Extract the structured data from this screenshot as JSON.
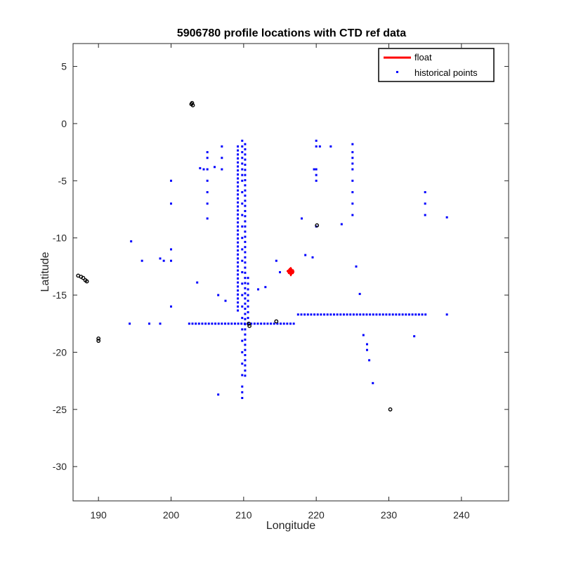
{
  "chart_data": {
    "type": "scatter",
    "title": "5906780 profile locations with CTD ref data",
    "xlabel": "Longitude",
    "ylabel": "Latitude",
    "xlim": [
      186.5,
      246.5
    ],
    "ylim": [
      -33,
      7
    ],
    "xticks": [
      "190",
      "200",
      "210",
      "220",
      "230",
      "240"
    ],
    "yticks": [
      "5",
      "0",
      "-5",
      "-10",
      "-15",
      "-20",
      "-25",
      "-30"
    ],
    "x_tick_values": [
      190,
      200,
      210,
      220,
      230,
      240
    ],
    "y_tick_values": [
      5,
      0,
      -5,
      -10,
      -15,
      -20,
      -25,
      -30
    ],
    "grid": false,
    "legend_position": "top-right",
    "legend": [
      {
        "label": "float",
        "marker": "line",
        "color": "#ff0000"
      },
      {
        "label": "historical points",
        "marker": "dot",
        "color": "#0000ff"
      }
    ],
    "series": [
      {
        "name": "float",
        "color": "#ff0000",
        "x": [
          216.3,
          216.4,
          216.5,
          216.6,
          216.5,
          216.4,
          216.6,
          216.5
        ],
        "y": [
          -12.9,
          -13.0,
          -12.8,
          -13.0,
          -13.1,
          -12.85,
          -12.9,
          -13.0
        ]
      },
      {
        "name": "historical points",
        "color": "#0000ff",
        "points": [
          [
            209.8,
            -2.0
          ],
          [
            209.8,
            -1.5
          ],
          [
            209.8,
            -2.5
          ],
          [
            209.8,
            -3.0
          ],
          [
            209.8,
            -3.5
          ],
          [
            209.8,
            -4.0
          ],
          [
            209.8,
            -4.5
          ],
          [
            209.8,
            -5.0
          ],
          [
            209.8,
            -6.0
          ],
          [
            209.8,
            -7.0
          ],
          [
            209.8,
            -8.0
          ],
          [
            209.8,
            -9.0
          ],
          [
            209.8,
            -10.0
          ],
          [
            209.8,
            -11.0
          ],
          [
            209.8,
            -12.0
          ],
          [
            209.8,
            -13.0
          ],
          [
            209.8,
            -14.0
          ],
          [
            209.8,
            -15.0
          ],
          [
            209.8,
            -16.0
          ],
          [
            209.8,
            -17.0
          ],
          [
            209.8,
            -18.0
          ],
          [
            209.8,
            -19.0
          ],
          [
            209.8,
            -20.0
          ],
          [
            209.8,
            -21.0
          ],
          [
            209.8,
            -22.0
          ],
          [
            209.8,
            -23.0
          ],
          [
            209.8,
            -23.5
          ],
          [
            209.8,
            -24.0
          ],
          [
            205.0,
            -2.5
          ],
          [
            205.0,
            -3.0
          ],
          [
            205.0,
            -4.0
          ],
          [
            205.0,
            -5.0
          ],
          [
            205.0,
            -6.0
          ],
          [
            205.0,
            -7.0
          ],
          [
            205.0,
            -8.3
          ],
          [
            200.0,
            -5.0
          ],
          [
            200.0,
            -7.0
          ],
          [
            200.0,
            -11.0
          ],
          [
            200.0,
            -12.0
          ],
          [
            200.0,
            -16.0
          ],
          [
            207.0,
            -2.0
          ],
          [
            207.0,
            -3.0
          ],
          [
            206.5,
            -15.0
          ],
          [
            207.5,
            -15.5
          ],
          [
            206.5,
            -23.7
          ],
          [
            204.0,
            -3.9
          ],
          [
            204.5,
            -4.0
          ],
          [
            206.0,
            -3.8
          ],
          [
            207.0,
            -4.0
          ],
          [
            203.6,
            -13.9
          ],
          [
            194.5,
            -10.3
          ],
          [
            196.0,
            -12.0
          ],
          [
            198.5,
            -11.8
          ],
          [
            199.0,
            -12.0
          ],
          [
            194.3,
            -17.5
          ],
          [
            197.0,
            -17.5
          ],
          [
            198.5,
            -17.5
          ],
          [
            212.0,
            -14.5
          ],
          [
            213.0,
            -14.3
          ],
          [
            214.5,
            -12.0
          ],
          [
            215.0,
            -13.0
          ],
          [
            218.0,
            -8.3
          ],
          [
            218.5,
            -11.5
          ],
          [
            219.5,
            -11.7
          ],
          [
            220.0,
            -9.0
          ],
          [
            220.0,
            -1.5
          ],
          [
            220.0,
            -2.0
          ],
          [
            220.0,
            -4.0
          ],
          [
            220.0,
            -4.5
          ],
          [
            220.0,
            -5.0
          ],
          [
            219.7,
            -4.0
          ],
          [
            220.5,
            -2.0
          ],
          [
            222.0,
            -2.0
          ],
          [
            225.0,
            -1.8
          ],
          [
            225.0,
            -2.5
          ],
          [
            225.0,
            -3.0
          ],
          [
            225.0,
            -3.5
          ],
          [
            225.0,
            -4.0
          ],
          [
            225.0,
            -5.0
          ],
          [
            225.0,
            -6.0
          ],
          [
            225.0,
            -7.0
          ],
          [
            225.0,
            -8.0
          ],
          [
            223.5,
            -8.8
          ],
          [
            225.5,
            -12.5
          ],
          [
            226.0,
            -14.9
          ],
          [
            226.5,
            -18.5
          ],
          [
            227.0,
            -19.3
          ],
          [
            227.0,
            -19.8
          ],
          [
            227.3,
            -20.7
          ],
          [
            227.8,
            -22.7
          ],
          [
            233.5,
            -18.6
          ],
          [
            235.0,
            -6.0
          ],
          [
            235.0,
            -7.0
          ],
          [
            235.0,
            -8.0
          ],
          [
            238.0,
            -8.2
          ],
          [
            238.0,
            -16.7
          ]
        ],
        "lines": [
          {
            "axis": "x",
            "y": -17.5,
            "from": 202.5,
            "to": 217.0,
            "step": 0.45
          },
          {
            "axis": "x",
            "y": -16.7,
            "from": 217.5,
            "to": 235.0,
            "step": 0.45
          },
          {
            "axis": "y",
            "x": 209.2,
            "from": -2.0,
            "to": -16.5,
            "step": 0.35
          },
          {
            "axis": "y",
            "x": 210.2,
            "from": -1.8,
            "to": -22.0,
            "step": 0.45
          },
          {
            "axis": "y",
            "x": 210.6,
            "from": -13.5,
            "to": -17.5,
            "step": 0.5
          }
        ]
      },
      {
        "name": "",
        "color": "#000000",
        "clusters": [
          [
            202.9,
            1.8
          ],
          [
            202.8,
            1.7
          ],
          [
            203.0,
            1.6
          ],
          [
            187.2,
            -13.3
          ],
          [
            187.6,
            -13.4
          ],
          [
            187.9,
            -13.5
          ],
          [
            188.2,
            -13.7
          ],
          [
            188.4,
            -13.8
          ],
          [
            190.0,
            -18.8
          ],
          [
            190.0,
            -19.0
          ],
          [
            210.7,
            -17.5
          ],
          [
            210.8,
            -17.7
          ],
          [
            214.5,
            -17.3
          ],
          [
            220.1,
            -8.9
          ],
          [
            230.2,
            -25.0
          ]
        ]
      }
    ]
  }
}
